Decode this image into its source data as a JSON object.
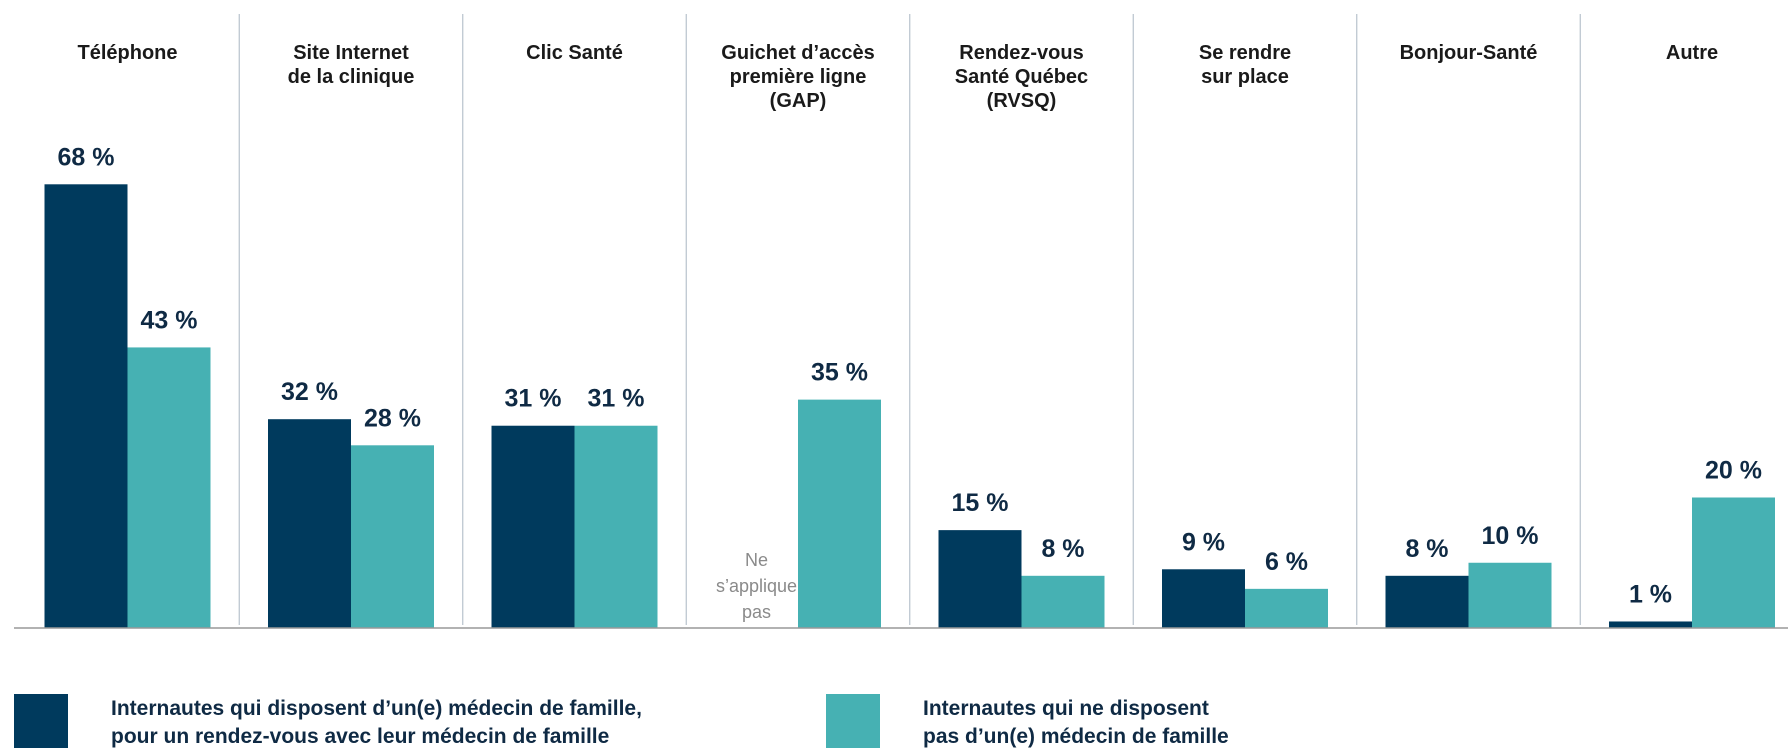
{
  "chart_data": {
    "type": "bar",
    "categories": [
      "Téléphone",
      "Site Internet\nde la clinique",
      "Clic Santé",
      "Guichet d’accès\npremière ligne\n(GAP)",
      "Rendez-vous\nSanté Québec\n(RVSQ)",
      "Se rendre\nsur place",
      "Bonjour-Santé",
      "Autre"
    ],
    "series": [
      {
        "name": "Internautes qui disposent d’un(e) médecin de famille,\npour un rendez-vous avec leur médecin de famille",
        "color": "#003a5d",
        "values": [
          68,
          32,
          31,
          null,
          15,
          9,
          8,
          1
        ],
        "value_labels": [
          "68 %",
          "32 %",
          "31 %",
          null,
          "15 %",
          "9 %",
          "8 %",
          "1 %"
        ]
      },
      {
        "name": "Internautes qui ne disposent\npas d’un(e) médecin de famille",
        "color": "#46b1b3",
        "values": [
          43,
          28,
          31,
          35,
          8,
          6,
          10,
          20
        ],
        "value_labels": [
          "43 %",
          "28 %",
          "31 %",
          "35 %",
          "8 %",
          "6 %",
          "10 %",
          "20 %"
        ]
      }
    ],
    "annotations": [
      {
        "text": "Ne\ns’applique\npas"
      }
    ],
    "ylim": [
      0,
      80
    ]
  }
}
